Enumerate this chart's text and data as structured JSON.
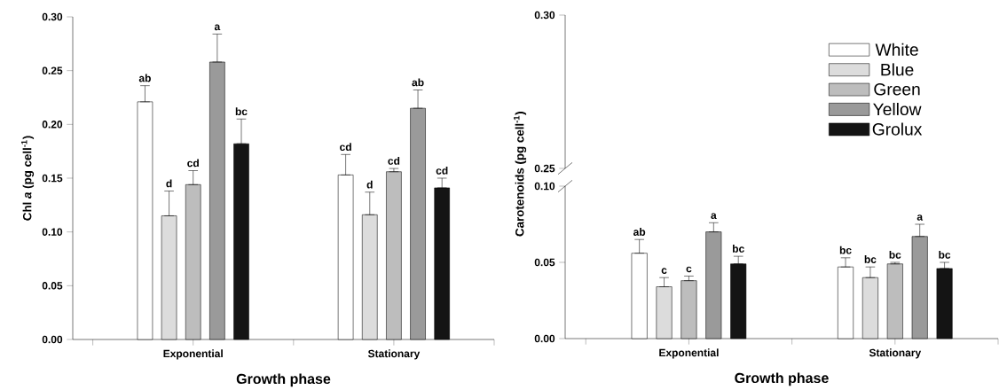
{
  "chart_data": [
    {
      "type": "bar",
      "categories": [
        "Exponential",
        "Stationary"
      ],
      "xlabel": "Growth phase",
      "ylabel": "Chl *a* (pg cell$^{-1}$)",
      "ylim": [
        0,
        0.3
      ],
      "yticks": [
        {
          "value": 0,
          "label": "0.00"
        },
        {
          "value": 0.05,
          "label": "0.05"
        },
        {
          "value": 0.1,
          "label": "0.10"
        },
        {
          "value": 0.15,
          "label": "0.15"
        },
        {
          "value": 0.2,
          "label": "0.20"
        },
        {
          "value": 0.25,
          "label": "0.25"
        },
        {
          "value": 0.3,
          "label": "0.30"
        }
      ],
      "series": [
        {
          "color": "#ffffff",
          "values": [
            0.221,
            0.153
          ],
          "errors": [
            [
              0.221,
              0.236
            ],
            [
              0.153,
              0.172
            ]
          ],
          "value_labels": [
            "ab",
            "cd"
          ]
        },
        {
          "color": "#dcdcdc",
          "values": [
            0.115,
            0.116
          ],
          "errors": [
            [
              0.115,
              0.138
            ],
            [
              0.116,
              0.137
            ]
          ],
          "value_labels": [
            "d",
            "d"
          ]
        },
        {
          "color": "#bdbdbd",
          "values": [
            0.144,
            0.156
          ],
          "errors": [
            [
              0.144,
              0.157
            ],
            [
              0.156,
              0.159
            ]
          ],
          "value_labels": [
            "cd",
            "cd"
          ]
        },
        {
          "color": "#9a9a9a",
          "values": [
            0.258,
            0.215
          ],
          "errors": [
            [
              0.258,
              0.284
            ],
            [
              0.215,
              0.232
            ]
          ],
          "value_labels": [
            "a",
            "ab"
          ]
        },
        {
          "color": "#141414",
          "values": [
            0.182,
            0.141
          ],
          "errors": [
            [
              0.182,
              0.205
            ],
            [
              0.141,
              0.15
            ]
          ],
          "value_labels": [
            "bc",
            "cd"
          ]
        }
      ]
    },
    {
      "type": "bar",
      "categories": [
        null,
        null
      ],
      "ylim": [
        0.25,
        0.3
      ],
      "yticks": [
        {
          "value": 0.25,
          "label": "0.25"
        },
        {
          "value": 0.3,
          "label": "0.30"
        }
      ],
      "tick_labels": "y"
    },
    {
      "type": "bar",
      "categories": [
        "Exponential",
        "Stationary"
      ],
      "xlabel": "Growth phase",
      "ylabel": "Carotenoids (pg cell$^{-1}$)",
      "ylim": [
        0,
        0.1
      ],
      "legend": "top right",
      "yticks": [
        {
          "value": 0,
          "label": "0.00"
        },
        {
          "value": 0.05,
          "label": "0.05"
        },
        {
          "value": 0.1,
          "label": "0.10"
        }
      ],
      "series": [
        {
          "name": "White",
          "color": "#ffffff",
          "values": [
            0.056,
            0.047
          ],
          "errors": [
            [
              0.056,
              0.065
            ],
            [
              0.047,
              0.053
            ]
          ],
          "value_labels": [
            "ab",
            "bc"
          ]
        },
        {
          "name": "Blue",
          "color": "#dcdcdc",
          "values": [
            0.034,
            0.04
          ],
          "errors": [
            [
              0.034,
              0.04
            ],
            [
              0.04,
              0.047
            ]
          ],
          "value_labels": [
            "c",
            "bc"
          ]
        },
        {
          "name": "Green",
          "color": "#bdbdbd",
          "values": [
            0.038,
            0.049
          ],
          "errors": [
            [
              0.038,
              0.041
            ],
            [
              0.049,
              0.05
            ]
          ],
          "value_labels": [
            "c",
            "bc"
          ]
        },
        {
          "name": "Yellow",
          "color": "#9a9a9a",
          "values": [
            0.07,
            0.067
          ],
          "errors": [
            [
              0.07,
              0.076
            ],
            [
              0.067,
              0.075
            ]
          ],
          "value_labels": [
            "a",
            "a"
          ]
        },
        {
          "name": "Grolux",
          "color": "#141414",
          "values": [
            0.049,
            0.046
          ],
          "errors": [
            [
              0.049,
              0.054
            ],
            [
              0.046,
              0.05
            ]
          ],
          "value_labels": [
            "bc",
            "bc"
          ]
        }
      ]
    }
  ]
}
